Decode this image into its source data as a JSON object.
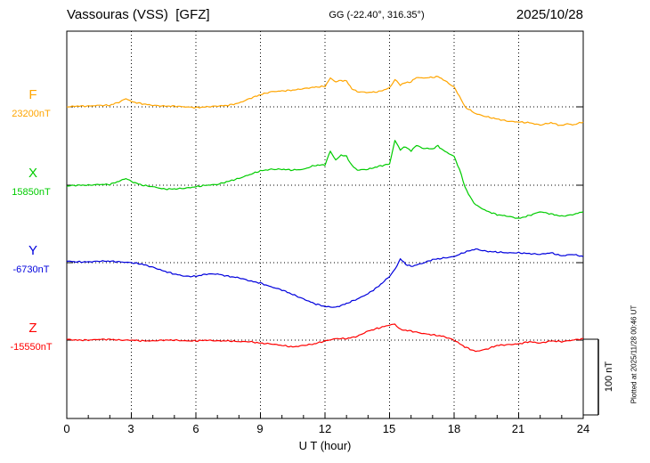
{
  "header": {
    "station_title": "Vassouras (VSS)  [GFZ]",
    "gg_coords": "GG (-22.40°, 316.35°)",
    "date": "2025/10/28"
  },
  "chart_data": {
    "type": "line",
    "title": "Vassouras (VSS) [GFZ] magnetogram 2025/10/28",
    "xlabel": "U T (hour)",
    "x_range": [
      0,
      24
    ],
    "x_tick_labels": [
      "0",
      "3",
      "6",
      "9",
      "12",
      "15",
      "18",
      "21",
      "24"
    ],
    "grid": "dotted vertical lines every 3 hours; dotted horizontal line at each component baseline",
    "legend_position": "left-margin component labels",
    "scale_bar": {
      "label": "100 nT",
      "nT": 100
    },
    "plotted_note": "Plotted at 2025/11/28 00:46 UT",
    "series": [
      {
        "name": "F",
        "color": "#FFA500",
        "baseline_nT": 23200,
        "baseline_label": "23200nT",
        "points_hour_offsetnT": [
          [
            0,
            0
          ],
          [
            0.5,
            1
          ],
          [
            1,
            1
          ],
          [
            1.5,
            2
          ],
          [
            2,
            2
          ],
          [
            2.5,
            7
          ],
          [
            2.75,
            11
          ],
          [
            3,
            7
          ],
          [
            3.5,
            4
          ],
          [
            4,
            2
          ],
          [
            4.5,
            1
          ],
          [
            5,
            1
          ],
          [
            5.5,
            0
          ],
          [
            6,
            -1
          ],
          [
            6.5,
            0
          ],
          [
            7,
            1
          ],
          [
            7.5,
            2
          ],
          [
            8,
            5
          ],
          [
            8.5,
            11
          ],
          [
            9,
            16
          ],
          [
            9.5,
            20
          ],
          [
            10,
            21
          ],
          [
            10.5,
            22
          ],
          [
            11,
            24
          ],
          [
            11.5,
            26
          ],
          [
            12,
            27
          ],
          [
            12.25,
            38
          ],
          [
            12.5,
            33
          ],
          [
            12.75,
            35
          ],
          [
            13,
            34
          ],
          [
            13.25,
            24
          ],
          [
            13.5,
            20
          ],
          [
            14,
            19
          ],
          [
            14.5,
            20
          ],
          [
            15,
            25
          ],
          [
            15.25,
            36
          ],
          [
            15.5,
            29
          ],
          [
            15.75,
            32
          ],
          [
            16,
            33
          ],
          [
            16.25,
            39
          ],
          [
            16.5,
            38
          ],
          [
            17,
            39
          ],
          [
            17.25,
            40
          ],
          [
            17.5,
            36
          ],
          [
            18,
            26
          ],
          [
            18.25,
            14
          ],
          [
            18.5,
            0
          ],
          [
            19,
            -9
          ],
          [
            19.5,
            -13
          ],
          [
            20,
            -16
          ],
          [
            20.5,
            -19
          ],
          [
            21,
            -20
          ],
          [
            21.5,
            -21
          ],
          [
            22,
            -24
          ],
          [
            22.5,
            -21
          ],
          [
            23,
            -25
          ],
          [
            23.25,
            -22
          ],
          [
            23.5,
            -24
          ],
          [
            24,
            -20
          ]
        ]
      },
      {
        "name": "X",
        "color": "#00CC00",
        "baseline_nT": 15850,
        "baseline_label": "15850nT",
        "points_hour_offsetnT": [
          [
            0,
            -1
          ],
          [
            0.5,
            0
          ],
          [
            1,
            0
          ],
          [
            1.5,
            1
          ],
          [
            2,
            1
          ],
          [
            2.5,
            6
          ],
          [
            2.75,
            9
          ],
          [
            3,
            5
          ],
          [
            3.5,
            0
          ],
          [
            4,
            -2
          ],
          [
            4.5,
            -5
          ],
          [
            5,
            -5
          ],
          [
            5.5,
            -4
          ],
          [
            6,
            -2
          ],
          [
            6.5,
            0
          ],
          [
            7,
            1
          ],
          [
            7.5,
            5
          ],
          [
            8,
            9
          ],
          [
            8.5,
            14
          ],
          [
            9,
            19
          ],
          [
            9.5,
            21
          ],
          [
            10,
            21
          ],
          [
            10.5,
            20
          ],
          [
            11,
            21
          ],
          [
            11.5,
            26
          ],
          [
            12,
            27
          ],
          [
            12.25,
            45
          ],
          [
            12.5,
            33
          ],
          [
            12.75,
            40
          ],
          [
            13,
            38
          ],
          [
            13.25,
            26
          ],
          [
            13.5,
            20
          ],
          [
            14,
            21
          ],
          [
            14.5,
            25
          ],
          [
            15,
            28
          ],
          [
            15.25,
            59
          ],
          [
            15.5,
            47
          ],
          [
            15.75,
            51
          ],
          [
            16,
            45
          ],
          [
            16.25,
            53
          ],
          [
            16.5,
            49
          ],
          [
            17,
            48
          ],
          [
            17.25,
            52
          ],
          [
            17.5,
            46
          ],
          [
            18,
            38
          ],
          [
            18.25,
            21
          ],
          [
            18.5,
            -2
          ],
          [
            18.75,
            -16
          ],
          [
            19,
            -26
          ],
          [
            19.5,
            -34
          ],
          [
            20,
            -39
          ],
          [
            20.5,
            -41
          ],
          [
            21,
            -44
          ],
          [
            21.5,
            -40
          ],
          [
            22,
            -35
          ],
          [
            22.5,
            -38
          ],
          [
            23,
            -41
          ],
          [
            23.5,
            -39
          ],
          [
            24,
            -35
          ]
        ]
      },
      {
        "name": "Y",
        "color": "#0000DD",
        "baseline_nT": -6730,
        "baseline_label": "-6730nT",
        "points_hour_offsetnT": [
          [
            0,
            2
          ],
          [
            0.5,
            1
          ],
          [
            1,
            1
          ],
          [
            1.5,
            2
          ],
          [
            2,
            2
          ],
          [
            2.5,
            1
          ],
          [
            3,
            0
          ],
          [
            3.5,
            -2
          ],
          [
            4,
            -6
          ],
          [
            4.5,
            -11
          ],
          [
            5,
            -15
          ],
          [
            5.5,
            -18
          ],
          [
            6,
            -18
          ],
          [
            6.5,
            -15
          ],
          [
            7,
            -15
          ],
          [
            7.5,
            -18
          ],
          [
            8,
            -20
          ],
          [
            8.5,
            -24
          ],
          [
            9,
            -27
          ],
          [
            9.5,
            -32
          ],
          [
            10,
            -36
          ],
          [
            10.5,
            -42
          ],
          [
            11,
            -48
          ],
          [
            11.5,
            -54
          ],
          [
            12,
            -58
          ],
          [
            12.5,
            -59
          ],
          [
            13,
            -54
          ],
          [
            13.5,
            -48
          ],
          [
            14,
            -41
          ],
          [
            14.5,
            -31
          ],
          [
            15,
            -18
          ],
          [
            15.25,
            -9
          ],
          [
            15.5,
            5
          ],
          [
            15.75,
            -2
          ],
          [
            16,
            -5
          ],
          [
            16.5,
            -1
          ],
          [
            17,
            4
          ],
          [
            17.5,
            6
          ],
          [
            18,
            8
          ],
          [
            18.5,
            14
          ],
          [
            19,
            18
          ],
          [
            19.5,
            15
          ],
          [
            20,
            14
          ],
          [
            20.5,
            13
          ],
          [
            21,
            13
          ],
          [
            21.5,
            12
          ],
          [
            22,
            11
          ],
          [
            22.5,
            13
          ],
          [
            23,
            9
          ],
          [
            23.5,
            11
          ],
          [
            24,
            8
          ]
        ]
      },
      {
        "name": "Z",
        "color": "#FF0000",
        "baseline_nT": -15550,
        "baseline_label": "-15550nT",
        "points_hour_offsetnT": [
          [
            0,
            1
          ],
          [
            0.5,
            0
          ],
          [
            1,
            0
          ],
          [
            1.5,
            1
          ],
          [
            2,
            1
          ],
          [
            2.5,
            0
          ],
          [
            3,
            0
          ],
          [
            3.5,
            -1
          ],
          [
            4,
            -1
          ],
          [
            4.5,
            0
          ],
          [
            5,
            0
          ],
          [
            5.5,
            -1
          ],
          [
            6,
            -1
          ],
          [
            6.5,
            0
          ],
          [
            7,
            -1
          ],
          [
            7.5,
            -1
          ],
          [
            8,
            -2
          ],
          [
            8.5,
            -2
          ],
          [
            9,
            -4
          ],
          [
            9.5,
            -5
          ],
          [
            10,
            -7
          ],
          [
            10.5,
            -9
          ],
          [
            11,
            -7
          ],
          [
            11.5,
            -5
          ],
          [
            12,
            -1
          ],
          [
            12.5,
            2
          ],
          [
            13,
            2
          ],
          [
            13.5,
            5
          ],
          [
            14,
            12
          ],
          [
            14.5,
            16
          ],
          [
            15,
            20
          ],
          [
            15.25,
            21
          ],
          [
            15.5,
            14
          ],
          [
            16,
            12
          ],
          [
            16.5,
            9
          ],
          [
            17,
            7
          ],
          [
            17.5,
            5
          ],
          [
            18,
            0
          ],
          [
            18.5,
            -9
          ],
          [
            19,
            -15
          ],
          [
            19.5,
            -12
          ],
          [
            20,
            -7
          ],
          [
            20.5,
            -6
          ],
          [
            21,
            -5
          ],
          [
            21.5,
            -2
          ],
          [
            22,
            -4
          ],
          [
            22.5,
            -1
          ],
          [
            23,
            -2
          ],
          [
            23.5,
            0
          ],
          [
            24,
            2
          ]
        ]
      }
    ]
  }
}
